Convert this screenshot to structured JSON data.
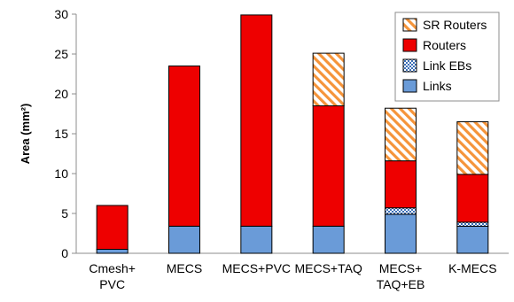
{
  "chart_data": {
    "type": "bar",
    "stacked": true,
    "title": "",
    "xlabel": "",
    "ylabel": "Area (mm²)",
    "ylim": [
      0,
      30
    ],
    "yticks": [
      0,
      5,
      10,
      15,
      20,
      25,
      30
    ],
    "grid": false,
    "legend_position": "top-right",
    "categories": [
      [
        "Cmesh+",
        "PVC"
      ],
      [
        "MECS"
      ],
      [
        "MECS+PVC"
      ],
      [
        "MECS+TAQ"
      ],
      [
        "MECS+",
        "TAQ+EB"
      ],
      [
        "K-MECS"
      ]
    ],
    "series": [
      {
        "name": "Links",
        "color": "#6a9bd8",
        "pattern": "solid",
        "values": [
          0.5,
          3.4,
          3.4,
          3.4,
          4.9,
          3.4
        ]
      },
      {
        "name": "Link EBs",
        "color": "#5b84c4",
        "pattern": "dots",
        "values": [
          0,
          0,
          0,
          0,
          0.8,
          0.5
        ]
      },
      {
        "name": "Routers",
        "color": "#ee0000",
        "pattern": "solid",
        "values": [
          5.5,
          20.1,
          26.5,
          15.1,
          5.9,
          6.0
        ]
      },
      {
        "name": "SR Routers",
        "color": "#f5943a",
        "pattern": "hatch",
        "values": [
          0,
          0,
          0,
          6.6,
          6.6,
          6.6
        ]
      }
    ]
  }
}
